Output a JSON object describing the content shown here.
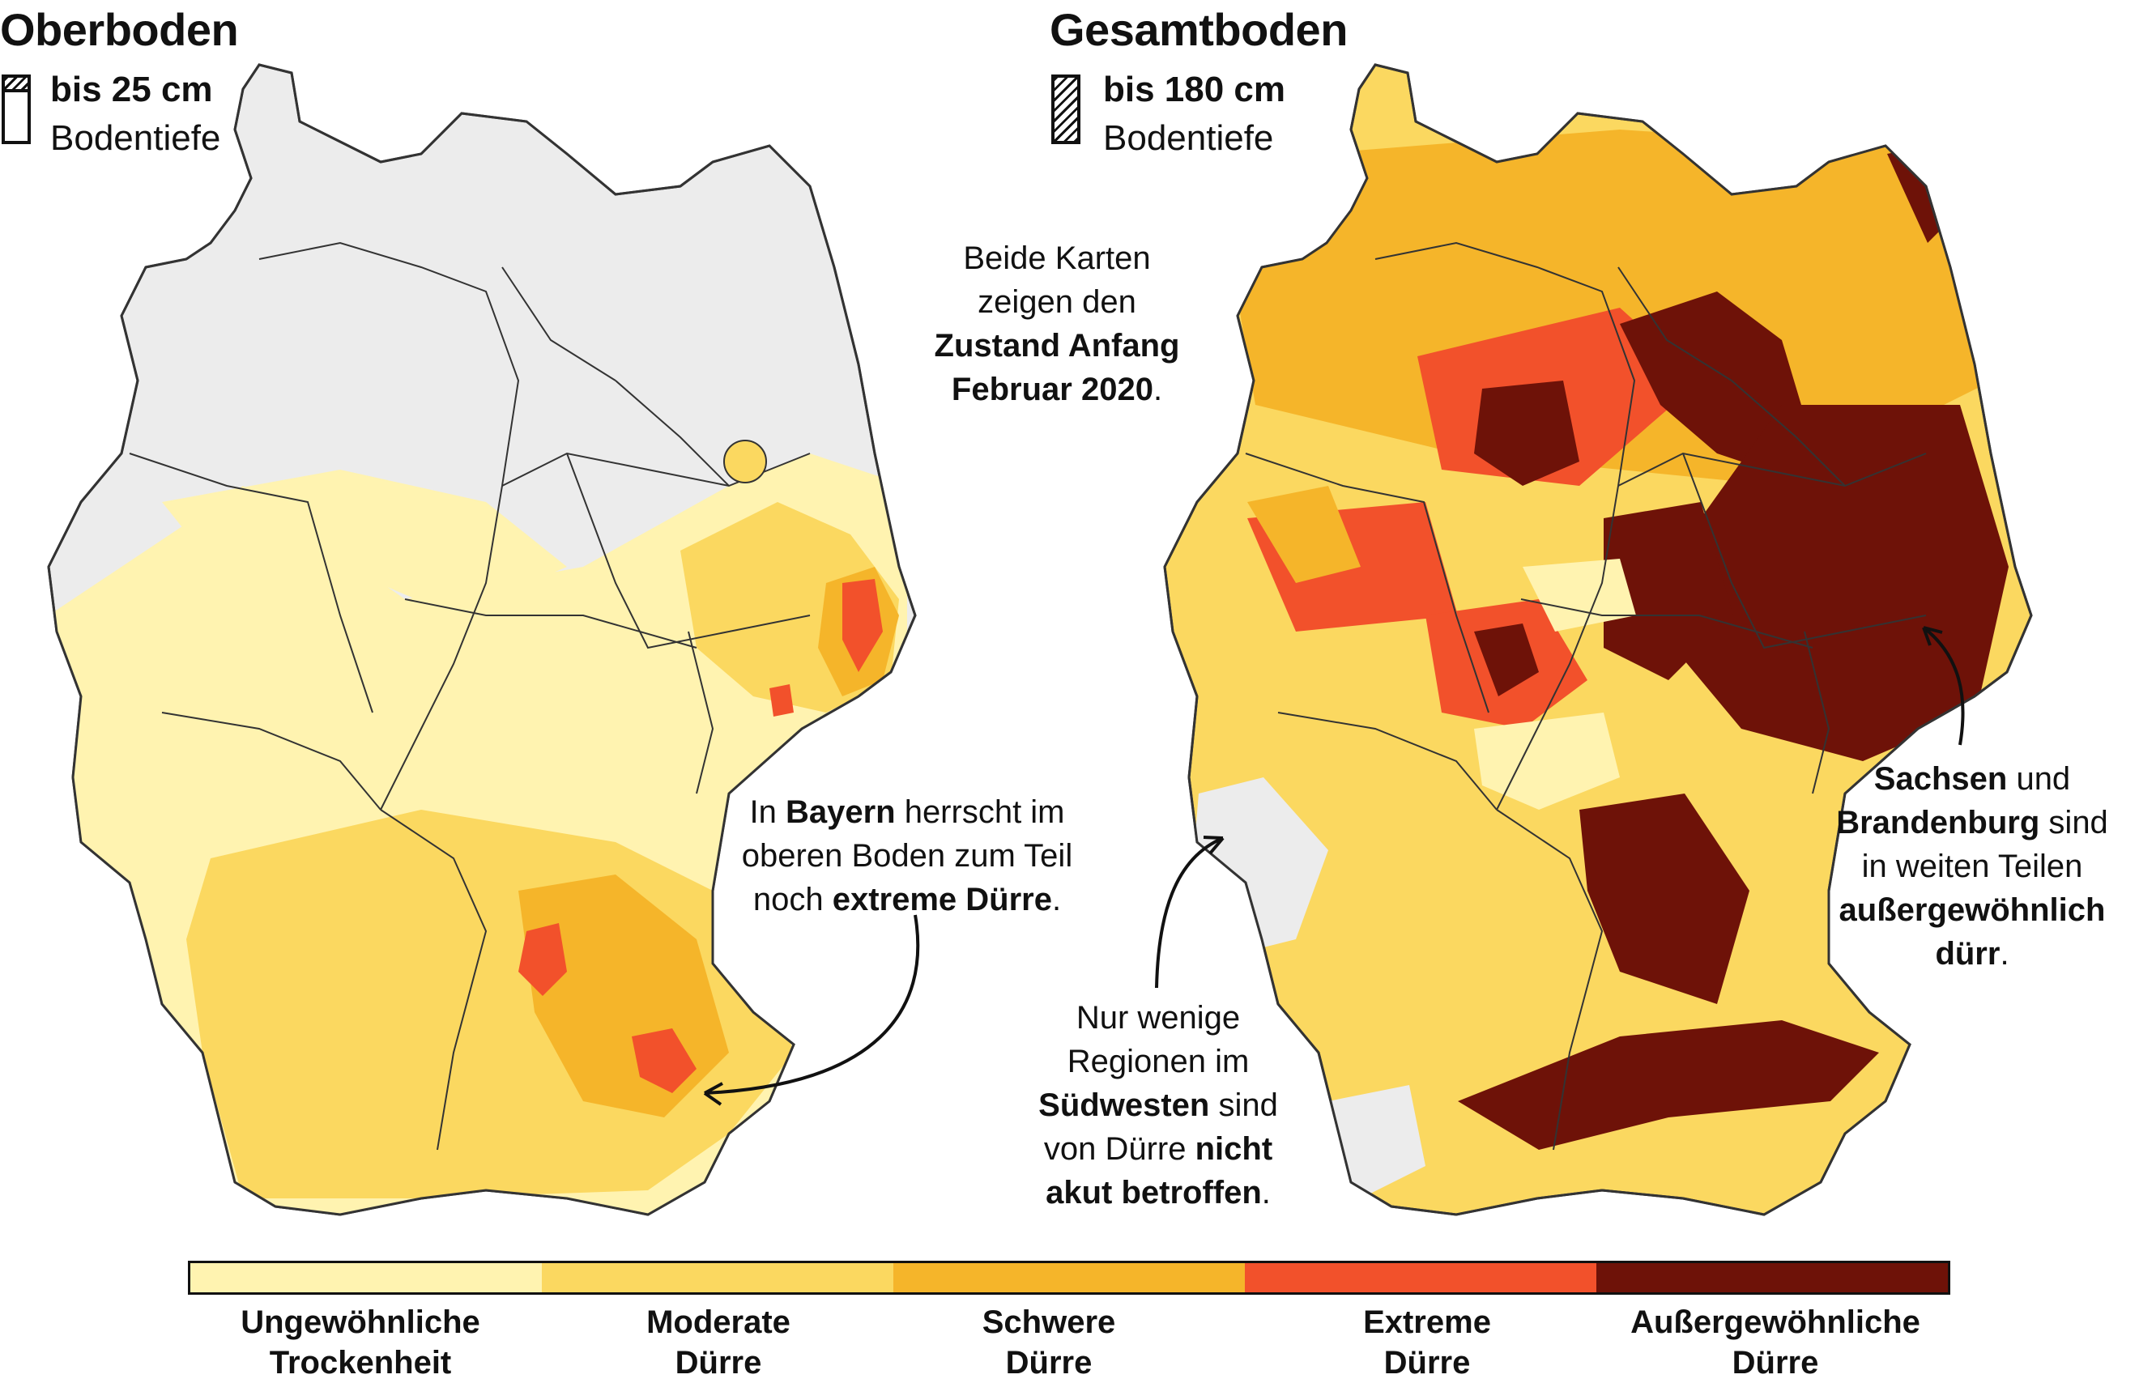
{
  "maps": {
    "left": {
      "title": "Oberboden",
      "depth_value": "bis 25 cm",
      "depth_label": "Bodentiefe"
    },
    "right": {
      "title": "Gesamtboden",
      "depth_value": "bis 180 cm",
      "depth_label": "Bodentiefe"
    }
  },
  "annotations": {
    "center": {
      "line1": "Beide Karten",
      "line2": "zeigen den",
      "bold1": "Zustand Anfang",
      "bold2": "Februar 2020",
      "end": "."
    },
    "bayern": {
      "pre": "In ",
      "bold1": "Bayern",
      "mid1": " herrscht im",
      "line2": "oberen Boden zum Teil",
      "line3pre": "noch ",
      "bold2": "extreme Dürre",
      "end": "."
    },
    "suedwesten": {
      "line1": "Nur wenige",
      "line2": "Regionen im",
      "bold1": "Südwesten",
      "mid1": " sind",
      "line4pre": "von Dürre ",
      "bold2": "nicht",
      "bold3": "akut betroffen",
      "end": "."
    },
    "sachsen": {
      "bold1": "Sachsen",
      "mid1": " und",
      "bold2": "Brandenburg",
      "mid2": " sind",
      "line3": "in weiten Teilen",
      "bold3": "außergewöhnlich",
      "bold4": "dürr",
      "end": "."
    }
  },
  "legend": {
    "items": [
      {
        "line1": "Ungewöhnliche",
        "line2": "Trockenheit",
        "color": "#fff3b0"
      },
      {
        "line1": "Moderate",
        "line2": "Dürre",
        "color": "#fbd860"
      },
      {
        "line1": "Schwere",
        "line2": "Dürre",
        "color": "#f5b52a"
      },
      {
        "line1": "Extreme",
        "line2": "Dürre",
        "color": "#f2512b"
      },
      {
        "line1": "Außergewöhnliche",
        "line2": "Dürre",
        "color": "#6e1208"
      }
    ]
  },
  "colors": {
    "no_drought": "#ececec",
    "border": "#333333"
  }
}
